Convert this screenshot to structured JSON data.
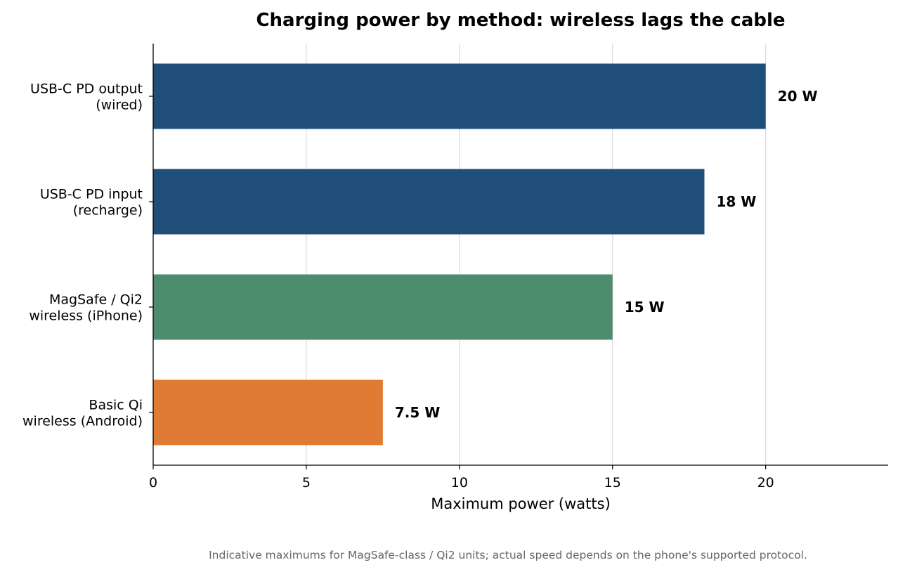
{
  "chart_data": {
    "type": "bar",
    "orientation": "horizontal",
    "title": "Charging power by method: wireless lags the cable",
    "xlabel": "Maximum power (watts)",
    "ylabel": "",
    "xlim": [
      0,
      24
    ],
    "xticks": [
      0,
      5,
      10,
      15,
      20
    ],
    "grid": "vertical",
    "categories": [
      {
        "lines": [
          "USB-C PD output",
          "(wired)"
        ]
      },
      {
        "lines": [
          "USB-C PD input",
          "(recharge)"
        ]
      },
      {
        "lines": [
          "MagSafe / Qi2",
          "wireless (iPhone)"
        ]
      },
      {
        "lines": [
          "Basic Qi",
          "wireless (Android)"
        ]
      }
    ],
    "values": [
      20,
      18,
      15,
      7.5
    ],
    "data_labels": [
      "20 W",
      "18 W",
      "15 W",
      "7.5 W"
    ],
    "colors": [
      "#1f4e79",
      "#1f4e79",
      "#4e8c6e",
      "#e07b33"
    ],
    "footnote": "Indicative maximums for MagSafe-class / Qi2 units; actual speed depends on the phone's supported protocol."
  }
}
